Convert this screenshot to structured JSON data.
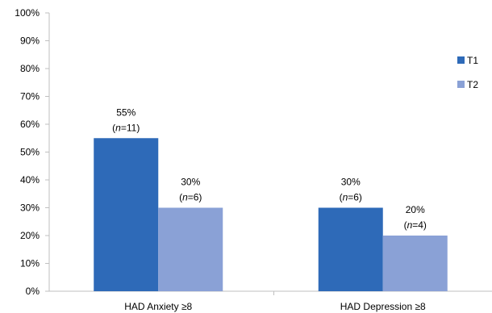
{
  "chart_data": {
    "type": "bar",
    "title": "",
    "xlabel": "",
    "ylabel": "",
    "categories": [
      "HAD Anxiety ≥8",
      "HAD Depression ≥8"
    ],
    "series": [
      {
        "name": "T1",
        "color": "#2e6ab8",
        "values": [
          55,
          30
        ],
        "labels": [
          {
            "pct": "55%",
            "n": "11"
          },
          {
            "pct": "30%",
            "n": "6"
          }
        ]
      },
      {
        "name": "T2",
        "color": "#8aa1d6",
        "values": [
          30,
          20
        ],
        "labels": [
          {
            "pct": "30%",
            "n": "6"
          },
          {
            "pct": "20%",
            "n": "4"
          }
        ]
      }
    ],
    "ylim": [
      0,
      100
    ],
    "yticks": [
      0,
      10,
      20,
      30,
      40,
      50,
      60,
      70,
      80,
      90,
      100
    ],
    "ytick_suffix": "%",
    "n_prefix": "n",
    "grid": false,
    "legend_position": "right"
  }
}
